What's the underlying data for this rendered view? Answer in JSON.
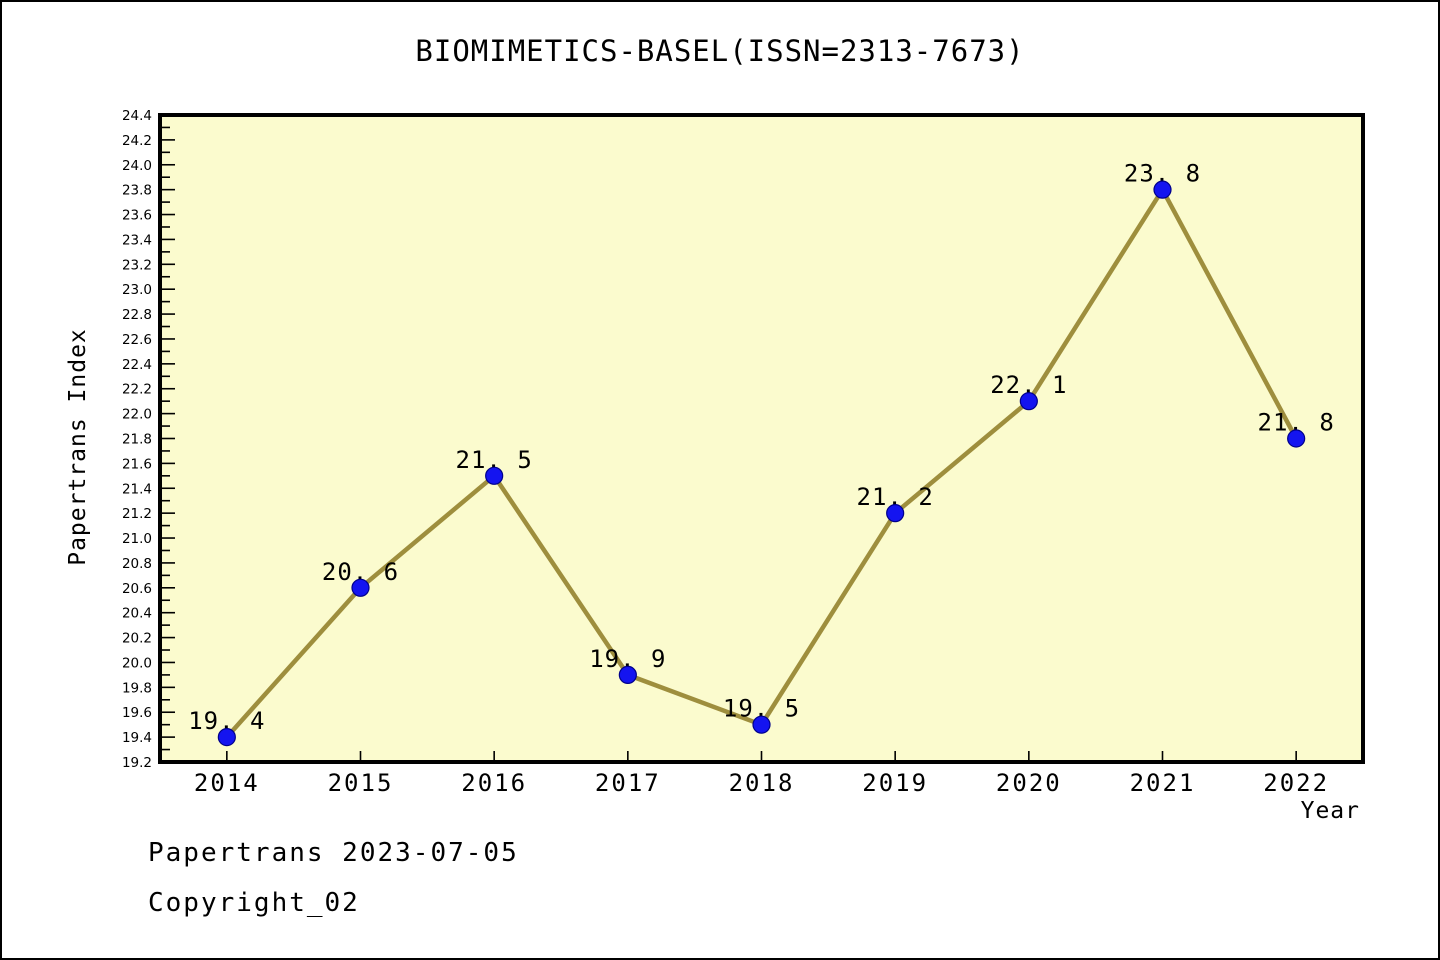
{
  "window": {
    "background": "#ffffff",
    "border_color": "#000000"
  },
  "chart_data": {
    "type": "line",
    "title": "BIOMIMETICS-BASEL(ISSN=2313-7673)",
    "xlabel": "Year",
    "ylabel": "Papertrans Index",
    "x": [
      2014,
      2015,
      2016,
      2017,
      2018,
      2019,
      2020,
      2021,
      2022
    ],
    "values": [
      19.4,
      20.6,
      21.5,
      19.9,
      19.5,
      21.2,
      22.1,
      23.8,
      21.8
    ],
    "point_labels": [
      "19.4",
      "20.6",
      "21.5",
      "19.9",
      "19.5",
      "21.2",
      "22.1",
      "23.8",
      "21.8"
    ],
    "xlim": [
      2013.5,
      2022.5
    ],
    "ylim": [
      19.2,
      24.4
    ],
    "y_tick_step": 0.2,
    "y_minor_tick_step": 0.1,
    "grid": false,
    "legend": null,
    "colors": {
      "plot_background": "#FBFBCE",
      "line": "#9E8E3D",
      "marker_fill": "#1414F0",
      "marker_edge": "#00008B",
      "axis": "#000000",
      "text": "#000000"
    }
  },
  "footer": {
    "line1": "Papertrans 2023-07-05",
    "line2": "Copyright_02"
  }
}
